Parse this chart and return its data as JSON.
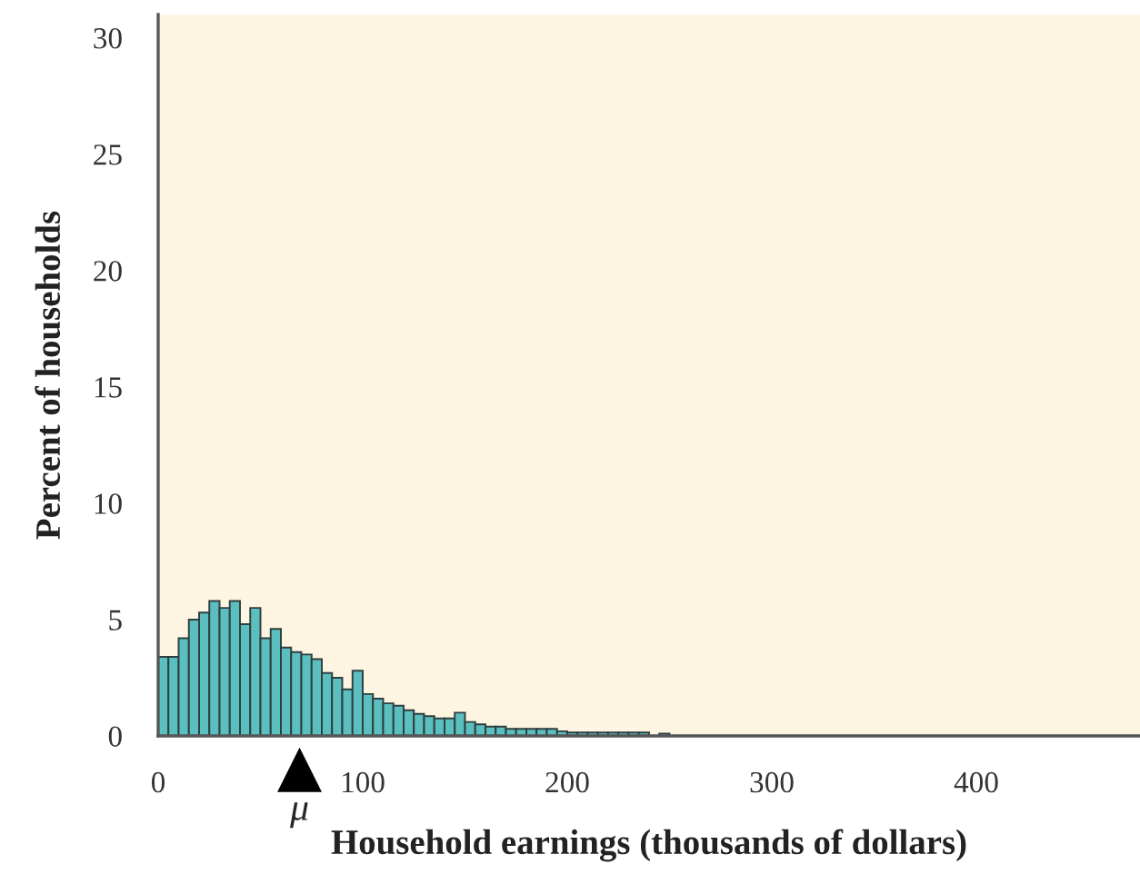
{
  "chart_data": {
    "type": "histogram",
    "xlabel": "Household earnings (thousands of dollars)",
    "ylabel": "Percent of households",
    "bins": [
      0,
      5,
      10,
      15,
      20,
      25,
      30,
      35,
      40,
      45,
      50,
      55,
      60,
      65,
      70,
      75,
      80,
      85,
      90,
      95,
      100,
      105,
      110,
      115,
      120,
      125,
      130,
      135,
      140,
      145,
      150,
      155,
      160,
      165,
      170,
      175,
      180,
      185,
      190,
      195,
      200,
      205,
      210,
      215,
      220,
      225,
      230,
      235,
      240,
      245,
      250
    ],
    "values": [
      3.4,
      3.4,
      4.2,
      5.0,
      5.3,
      5.8,
      5.5,
      5.8,
      4.8,
      5.5,
      4.2,
      4.6,
      3.8,
      3.6,
      3.5,
      3.3,
      2.7,
      2.5,
      2.0,
      2.8,
      1.8,
      1.6,
      1.4,
      1.3,
      1.1,
      0.95,
      0.85,
      0.75,
      0.75,
      1.0,
      0.6,
      0.5,
      0.4,
      0.4,
      0.3,
      0.3,
      0.3,
      0.3,
      0.3,
      0.2,
      0.15,
      0.15,
      0.15,
      0.15,
      0.15,
      0.15,
      0.15,
      0.15,
      0,
      0.1
    ],
    "color": "#5bbfc0",
    "xlim": [
      0,
      480
    ],
    "ylim": [
      0,
      31
    ],
    "xticks": [
      0,
      100,
      200,
      300,
      400
    ],
    "yticks": [
      0,
      5,
      10,
      15,
      20,
      25,
      30
    ],
    "annotations": [
      "μ"
    ]
  }
}
